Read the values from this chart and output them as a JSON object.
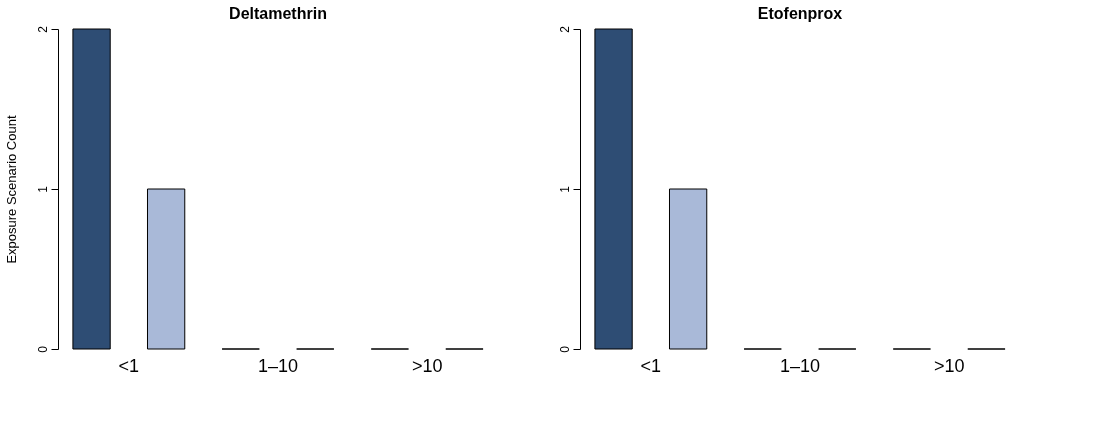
{
  "chart_data": [
    {
      "type": "bar",
      "title": "Deltamethrin",
      "ylabel": "Exposure Scenario Count",
      "categories": [
        "<1",
        "1–10",
        ">10"
      ],
      "ylim": [
        0,
        2
      ],
      "yticks": [
        0,
        1,
        2
      ],
      "grid": false,
      "legend": false,
      "series": [
        {
          "color": "#2e4d74",
          "values": [
            2,
            0,
            0
          ]
        },
        {
          "color": "#a9b9d8",
          "values": [
            1,
            0,
            0
          ]
        }
      ]
    },
    {
      "type": "bar",
      "title": "Etofenprox",
      "categories": [
        "<1",
        "1–10",
        ">10"
      ],
      "ylim": [
        0,
        2
      ],
      "yticks": [
        0,
        1,
        2
      ],
      "grid": false,
      "legend": false,
      "series": [
        {
          "color": "#2e4d74",
          "values": [
            2,
            0,
            0
          ]
        },
        {
          "color": "#a9b9d8",
          "values": [
            1,
            0,
            0
          ]
        }
      ]
    }
  ]
}
